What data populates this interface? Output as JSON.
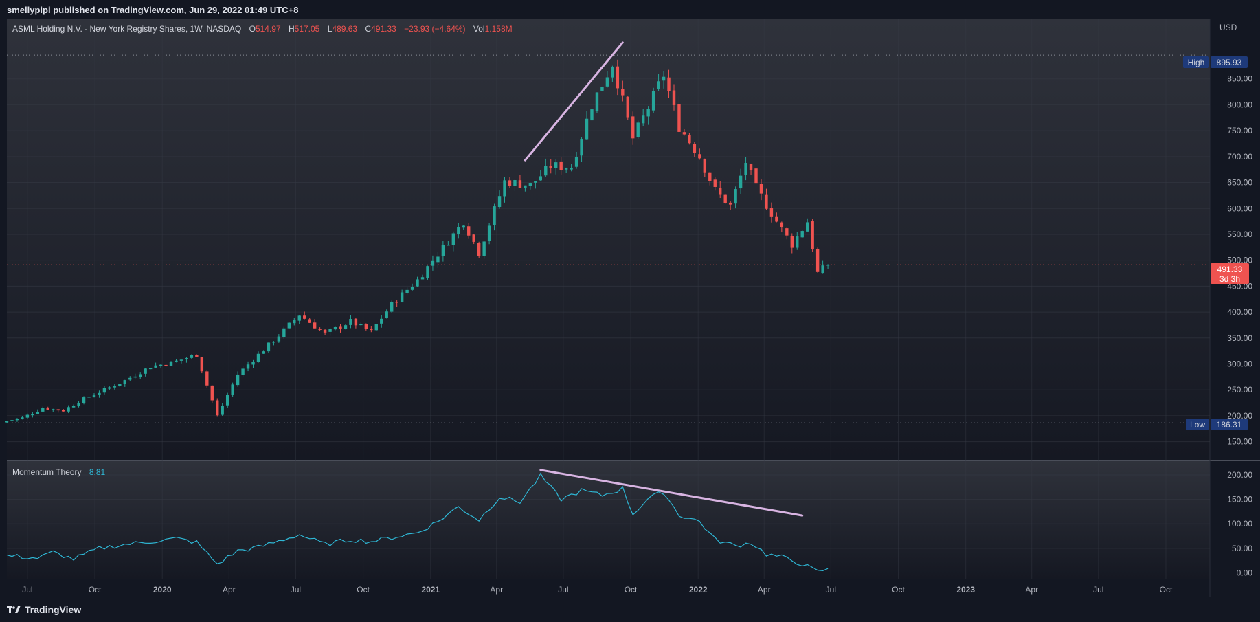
{
  "header": {
    "published_text": "smellypipi published on TradingView.com, Jun 29, 2022 01:49 UTC+8"
  },
  "legend": {
    "symbol": "ASML Holding N.V. - New York Registry Shares, 1W, NASDAQ",
    "o_label": "O",
    "o_value": "514.97",
    "h_label": "H",
    "h_value": "517.05",
    "l_label": "L",
    "l_value": "489.63",
    "c_label": "C",
    "c_value": "491.33",
    "change": "−23.93 (−4.64%)",
    "vol_label": "Vol",
    "vol_value": "1.158M"
  },
  "indicator": {
    "name": "Momentum Theory",
    "value": "8.81"
  },
  "price_axis": {
    "currency": "USD",
    "high_label": "High",
    "high_value": "895.93",
    "low_label": "Low",
    "low_value": "186.31",
    "last_price": "491.33",
    "countdown": "3d 3h"
  },
  "footer": {
    "brand": "TradingView"
  },
  "colors": {
    "background": "#131722",
    "up": "#26a69a",
    "down": "#ef5350",
    "momentum": "#2fb8d6",
    "trendline": "#d8b4e2",
    "axis_text": "#b2b5be",
    "badge": "#1e3a7a"
  },
  "chart_data": [
    {
      "type": "candlestick",
      "title": "ASML Holding N.V. - New York Registry Shares, 1W, NASDAQ",
      "x": {
        "start": "2019-06-03",
        "end": "2023-11-30",
        "unit": "week",
        "tick_labels": [
          {
            "label": "Jul",
            "date": "2019-07-01"
          },
          {
            "label": "Oct",
            "date": "2019-10-01"
          },
          {
            "label": "2020",
            "date": "2020-01-01",
            "bold": true
          },
          {
            "label": "Apr",
            "date": "2020-04-01"
          },
          {
            "label": "Jul",
            "date": "2020-07-01"
          },
          {
            "label": "Oct",
            "date": "2020-10-01"
          },
          {
            "label": "2021",
            "date": "2021-01-01",
            "bold": true
          },
          {
            "label": "Apr",
            "date": "2021-04-01"
          },
          {
            "label": "Jul",
            "date": "2021-07-01"
          },
          {
            "label": "Oct",
            "date": "2021-10-01"
          },
          {
            "label": "2022",
            "date": "2022-01-01",
            "bold": true
          },
          {
            "label": "Apr",
            "date": "2022-04-01"
          },
          {
            "label": "Jul",
            "date": "2022-07-01"
          },
          {
            "label": "Oct",
            "date": "2022-10-01"
          },
          {
            "label": "2023",
            "date": "2023-01-01",
            "bold": true
          },
          {
            "label": "Apr",
            "date": "2023-04-01"
          },
          {
            "label": "Jul",
            "date": "2023-07-01"
          },
          {
            "label": "Oct",
            "date": "2023-10-01"
          }
        ]
      },
      "y": {
        "range": [
          115,
          965
        ],
        "unit": "USD",
        "ticks": [
          "150.00",
          "200.00",
          "250.00",
          "300.00",
          "350.00",
          "400.00",
          "450.00",
          "500.00",
          "550.00",
          "600.00",
          "650.00",
          "700.00",
          "750.00",
          "800.00",
          "850.00"
        ]
      },
      "grid": true,
      "high": 895.93,
      "low": 186.31,
      "last": 491.33,
      "trendline": {
        "from": {
          "date": "2021-05-10",
          "y": 693
        },
        "to": {
          "date": "2021-09-20",
          "y": 920
        }
      },
      "anchors": [
        {
          "date": "2019-06-03",
          "close": 190
        },
        {
          "date": "2019-06-24",
          "close": 196
        },
        {
          "date": "2019-07-22",
          "close": 215
        },
        {
          "date": "2019-08-19",
          "close": 210
        },
        {
          "date": "2019-09-09",
          "close": 228
        },
        {
          "date": "2019-10-14",
          "close": 250
        },
        {
          "date": "2019-11-11",
          "close": 268
        },
        {
          "date": "2019-12-16",
          "close": 295
        },
        {
          "date": "2020-01-13",
          "close": 302
        },
        {
          "date": "2020-02-17",
          "close": 318
        },
        {
          "date": "2020-03-16",
          "close": 200
        },
        {
          "date": "2020-04-13",
          "close": 280
        },
        {
          "date": "2020-05-11",
          "close": 318
        },
        {
          "date": "2020-06-08",
          "close": 355
        },
        {
          "date": "2020-07-06",
          "close": 395
        },
        {
          "date": "2020-08-10",
          "close": 358
        },
        {
          "date": "2020-09-14",
          "close": 382
        },
        {
          "date": "2020-10-12",
          "close": 362
        },
        {
          "date": "2020-11-09",
          "close": 415
        },
        {
          "date": "2020-12-14",
          "close": 462
        },
        {
          "date": "2021-01-11",
          "close": 512
        },
        {
          "date": "2021-02-15",
          "close": 575
        },
        {
          "date": "2021-03-08",
          "close": 515
        },
        {
          "date": "2021-04-12",
          "close": 652
        },
        {
          "date": "2021-05-17",
          "close": 645
        },
        {
          "date": "2021-06-14",
          "close": 682
        },
        {
          "date": "2021-07-12",
          "close": 680
        },
        {
          "date": "2021-08-09",
          "close": 800
        },
        {
          "date": "2021-09-06",
          "close": 880
        },
        {
          "date": "2021-10-04",
          "close": 735
        },
        {
          "date": "2021-10-25",
          "close": 795
        },
        {
          "date": "2021-11-15",
          "close": 858
        },
        {
          "date": "2021-12-06",
          "close": 758
        },
        {
          "date": "2022-01-03",
          "close": 700
        },
        {
          "date": "2022-01-24",
          "close": 635
        },
        {
          "date": "2022-02-14",
          "close": 605
        },
        {
          "date": "2022-03-07",
          "close": 690
        },
        {
          "date": "2022-03-21",
          "close": 640
        },
        {
          "date": "2022-04-11",
          "close": 590
        },
        {
          "date": "2022-05-09",
          "close": 530
        },
        {
          "date": "2022-05-30",
          "close": 575
        },
        {
          "date": "2022-06-13",
          "close": 475
        },
        {
          "date": "2022-06-27",
          "close": 491.33
        }
      ]
    },
    {
      "type": "line",
      "title": "Momentum Theory",
      "y": {
        "range": [
          -12,
          228
        ],
        "ticks": [
          "0.00",
          "50.00",
          "100.00",
          "150.00",
          "200.00"
        ]
      },
      "grid": true,
      "last": 8.81,
      "trendline": {
        "from": {
          "date": "2021-05-31",
          "y": 210
        },
        "to": {
          "date": "2022-05-23",
          "y": 117
        }
      },
      "anchors": [
        {
          "date": "2019-06-03",
          "value": 35
        },
        {
          "date": "2019-07-15",
          "value": 30
        },
        {
          "date": "2019-08-05",
          "value": 42
        },
        {
          "date": "2019-09-02",
          "value": 28
        },
        {
          "date": "2019-10-07",
          "value": 50
        },
        {
          "date": "2019-11-11",
          "value": 58
        },
        {
          "date": "2019-12-23",
          "value": 65
        },
        {
          "date": "2020-01-20",
          "value": 70
        },
        {
          "date": "2020-02-17",
          "value": 62
        },
        {
          "date": "2020-03-16",
          "value": 18
        },
        {
          "date": "2020-04-13",
          "value": 45
        },
        {
          "date": "2020-05-11",
          "value": 52
        },
        {
          "date": "2020-06-08",
          "value": 65
        },
        {
          "date": "2020-07-06",
          "value": 78
        },
        {
          "date": "2020-08-10",
          "value": 58
        },
        {
          "date": "2020-09-14",
          "value": 68
        },
        {
          "date": "2020-10-12",
          "value": 64
        },
        {
          "date": "2020-11-09",
          "value": 72
        },
        {
          "date": "2020-12-14",
          "value": 82
        },
        {
          "date": "2021-01-11",
          "value": 105
        },
        {
          "date": "2021-02-08",
          "value": 135
        },
        {
          "date": "2021-03-08",
          "value": 108
        },
        {
          "date": "2021-04-05",
          "value": 155
        },
        {
          "date": "2021-05-03",
          "value": 145
        },
        {
          "date": "2021-05-31",
          "value": 198
        },
        {
          "date": "2021-06-28",
          "value": 150
        },
        {
          "date": "2021-07-26",
          "value": 168
        },
        {
          "date": "2021-08-23",
          "value": 158
        },
        {
          "date": "2021-09-20",
          "value": 172
        },
        {
          "date": "2021-10-04",
          "value": 120
        },
        {
          "date": "2021-10-25",
          "value": 152
        },
        {
          "date": "2021-11-15",
          "value": 165
        },
        {
          "date": "2021-12-06",
          "value": 118
        },
        {
          "date": "2022-01-03",
          "value": 105
        },
        {
          "date": "2022-01-24",
          "value": 68
        },
        {
          "date": "2022-02-21",
          "value": 55
        },
        {
          "date": "2022-03-14",
          "value": 62
        },
        {
          "date": "2022-04-04",
          "value": 38
        },
        {
          "date": "2022-04-25",
          "value": 32
        },
        {
          "date": "2022-05-23",
          "value": 18
        },
        {
          "date": "2022-06-13",
          "value": 2
        },
        {
          "date": "2022-06-27",
          "value": 8.81
        }
      ]
    }
  ]
}
